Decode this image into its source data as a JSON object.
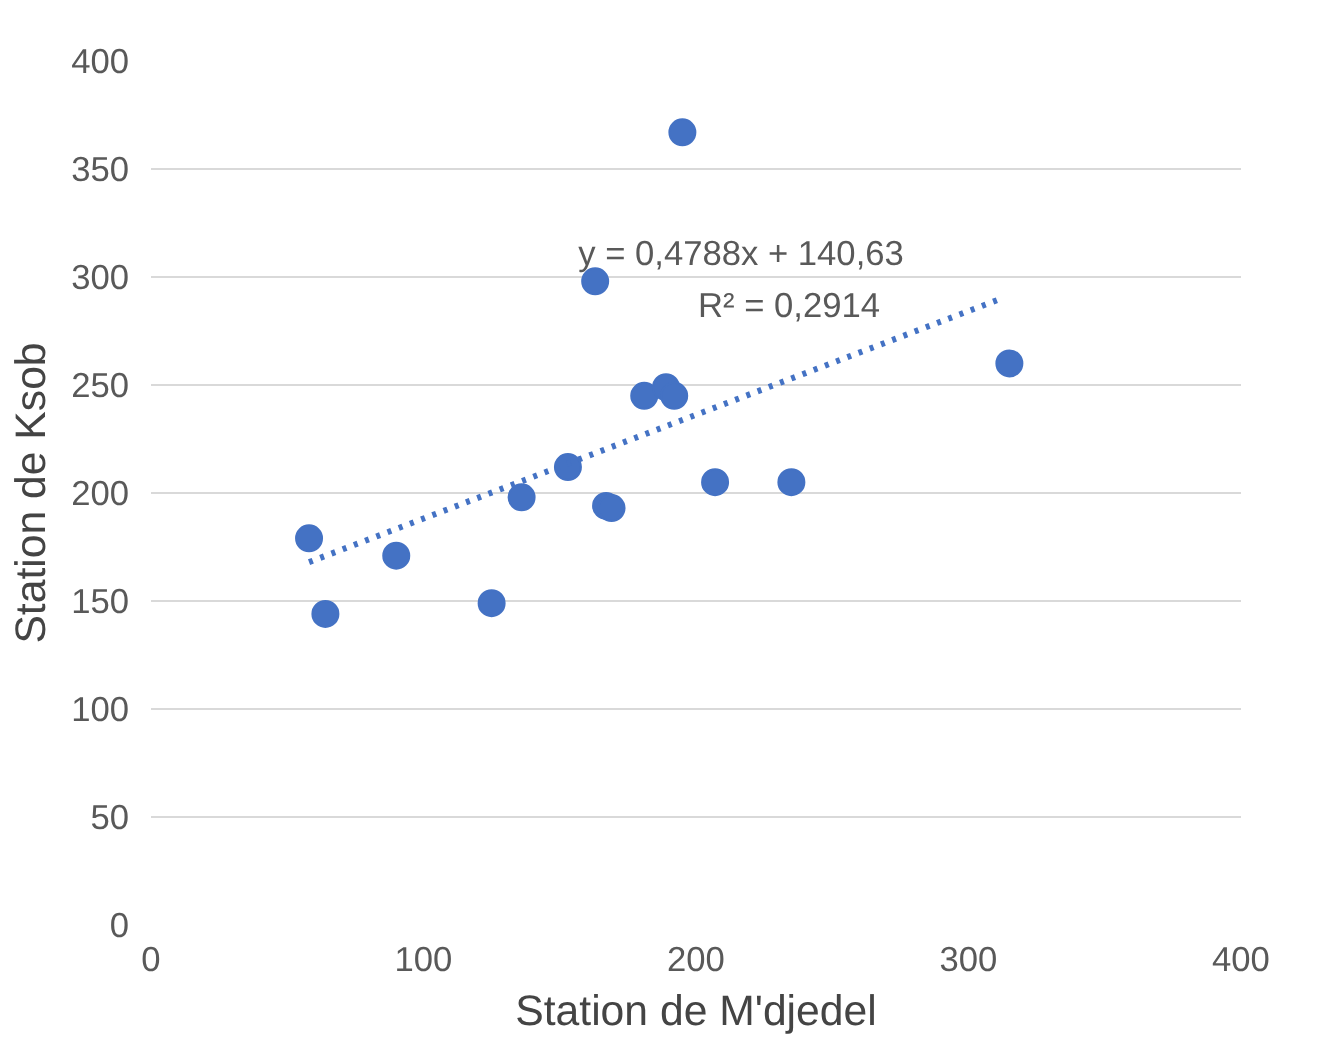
{
  "chart_data": {
    "type": "scatter",
    "xlabel": "Station de M'djedel",
    "ylabel": "Station de Ksob",
    "xlim": [
      0,
      400
    ],
    "xticks": [
      0,
      100,
      200,
      300,
      400
    ],
    "ylim": [
      0,
      400
    ],
    "yticks": [
      0,
      50,
      100,
      150,
      200,
      250,
      300,
      350,
      400
    ],
    "grid": "y",
    "marker": "circle",
    "series": [
      {
        "color": "#4472c4",
        "x": [
          58,
          64,
          90,
          125,
          136,
          153,
          167,
          169,
          163,
          195,
          181,
          189,
          192,
          207,
          235,
          315
        ],
        "values": [
          179,
          144,
          171,
          149,
          198,
          212,
          194,
          193,
          298,
          367,
          245,
          249,
          245,
          205,
          205,
          260
        ]
      },
      {
        "type": "line",
        "line_style": "dotted",
        "marker": "none",
        "color": "#4472c4",
        "x": [
          58,
          312
        ],
        "values": [
          168,
          290
        ]
      }
    ],
    "annotations": [
      "y = 0,4788x + 140,63",
      "R² = 0,2914"
    ]
  }
}
